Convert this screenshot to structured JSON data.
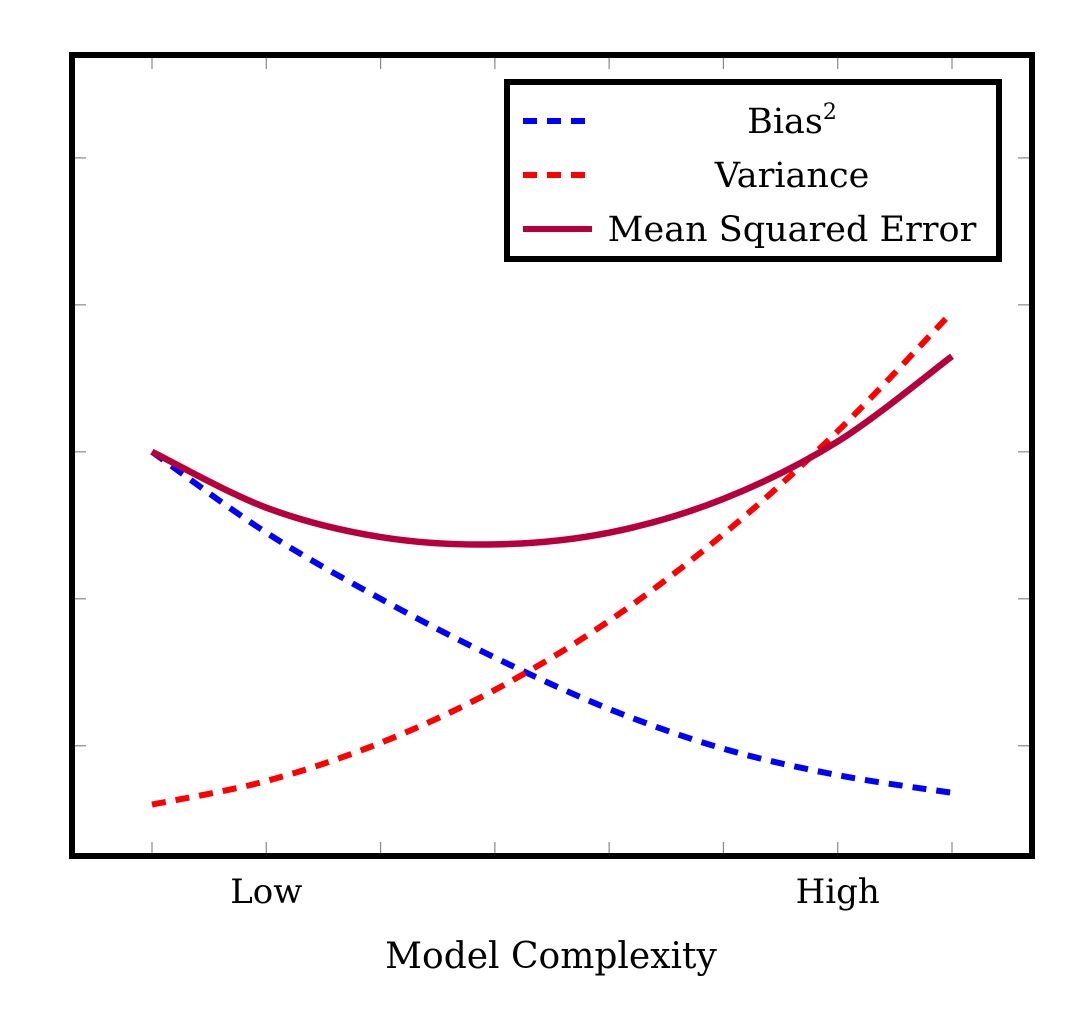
{
  "chart_data": {
    "type": "line",
    "title": "",
    "xlabel": "Model Complexity",
    "ylabel": "",
    "x_tick_labels": [
      {
        "label": "Low",
        "x": 1.0
      },
      {
        "label": "High",
        "x": 6.0
      }
    ],
    "x": [
      0,
      1,
      2,
      3,
      4,
      5,
      6,
      7
    ],
    "xlim": [
      -0.7,
      7.7
    ],
    "ylim": [
      0.25,
      5.7
    ],
    "grid": false,
    "legend_position": "top-right",
    "series": [
      {
        "name": "Bias",
        "name_superscript": "2",
        "style": "dashed",
        "color": "#0000ff",
        "values": [
          3.0,
          2.45,
          2.0,
          1.6,
          1.25,
          0.98,
          0.8,
          0.68
        ]
      },
      {
        "name": "Variance",
        "name_superscript": "",
        "style": "dashed",
        "color": "#ff0000",
        "values": [
          0.6,
          0.76,
          1.02,
          1.38,
          1.85,
          2.44,
          3.14,
          3.95
        ]
      },
      {
        "name": "Mean Squared Error",
        "name_superscript": "",
        "style": "solid",
        "color": "#b5003c",
        "values": [
          3.0,
          2.62,
          2.42,
          2.37,
          2.45,
          2.68,
          3.07,
          3.65
        ]
      }
    ]
  }
}
